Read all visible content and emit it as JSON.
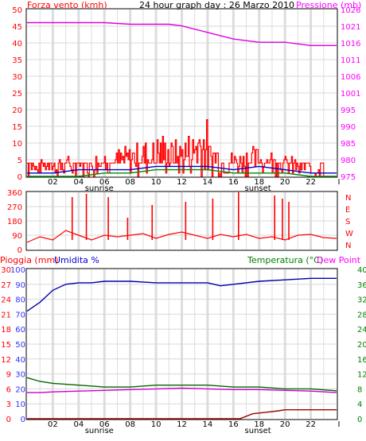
{
  "header": {
    "title": "24 hour graph day : 26 Marzo 2010",
    "left_label": "Forza vento (kmh)",
    "right_label": "Pressione (mb)"
  },
  "colors": {
    "wind": "#ff0000",
    "gust": "#cc0000",
    "wind_avg": "#0000cc",
    "wind_green": "#008800",
    "pressure": "#dd00dd",
    "direction": "#ff0000",
    "humidity": "#0000aa",
    "temperature": "#006600",
    "dewpoint": "#cc00cc",
    "rain": "#990000",
    "grid": "#d8d8d8",
    "axis_left": "#ff0000",
    "axis_right": "#ff00ff",
    "axis_blue": "#0000cc",
    "axis_green": "#008000",
    "axis_blue_labels": "#3333ff"
  },
  "hour_labels": [
    "02",
    "04",
    "06",
    "08",
    "10",
    "12",
    "14",
    "16",
    "18",
    "20",
    "22"
  ],
  "sun_labels": {
    "sunrise": "sunrise",
    "sunset": "sunset"
  },
  "chart_data": [
    {
      "type": "line",
      "name": "wind-pressure",
      "left_axis": {
        "label": "Forza vento (kmh)",
        "ticks": [
          "0",
          "5",
          "10",
          "15",
          "20",
          "25",
          "30",
          "35",
          "40",
          "45",
          "50"
        ],
        "range": [
          0,
          50
        ]
      },
      "right_axis": {
        "label": "Pressione (mb)",
        "ticks": [
          "975",
          "980",
          "985",
          "990",
          "995",
          "1001",
          "1006",
          "1011",
          "1016",
          "1021",
          "1026"
        ],
        "range": [
          975,
          1026
        ]
      },
      "x_range": [
        0,
        24
      ],
      "series": [
        {
          "key": "pressure",
          "points": [
            [
              0,
              1022
            ],
            [
              3,
              1022
            ],
            [
              6,
              1022
            ],
            [
              8,
              1021.5
            ],
            [
              11,
              1021.5
            ],
            [
              12,
              1021
            ],
            [
              13,
              1020
            ],
            [
              14,
              1019
            ],
            [
              16,
              1017
            ],
            [
              18,
              1016
            ],
            [
              20,
              1016
            ],
            [
              22,
              1015
            ],
            [
              24,
              1015
            ]
          ]
        },
        {
          "key": "wind_avg",
          "points": [
            [
              0,
              1
            ],
            [
              2,
              1
            ],
            [
              4,
              2
            ],
            [
              6,
              2
            ],
            [
              8,
              2
            ],
            [
              10,
              3
            ],
            [
              12,
              3
            ],
            [
              14,
              3
            ],
            [
              16,
              2
            ],
            [
              18,
              3
            ],
            [
              20,
              2
            ],
            [
              22,
              1
            ],
            [
              24,
              1
            ]
          ]
        },
        {
          "key": "wind_green",
          "points": [
            [
              0,
              0
            ],
            [
              4,
              0
            ],
            [
              6,
              1
            ],
            [
              8,
              1
            ],
            [
              10,
              2
            ],
            [
              12,
              2
            ],
            [
              14,
              2
            ],
            [
              16,
              1
            ],
            [
              18,
              1
            ],
            [
              20,
              1
            ],
            [
              22,
              0
            ],
            [
              24,
              0
            ]
          ]
        }
      ],
      "gusts_hourly_max": [
        4,
        5,
        5,
        6,
        5,
        7,
        8,
        9,
        10,
        11,
        13,
        11,
        13,
        18,
        11,
        8,
        8,
        9,
        8,
        7,
        6,
        3,
        3,
        0
      ]
    },
    {
      "type": "line",
      "name": "wind-direction",
      "left_axis": {
        "ticks": [
          "0",
          "90",
          "180",
          "270",
          "360"
        ],
        "range": [
          0,
          360
        ]
      },
      "right_axis": {
        "ticks": [
          "N",
          "W",
          "S",
          "E",
          "N"
        ]
      },
      "x_range": [
        0,
        24
      ],
      "series": [
        {
          "key": "direction",
          "points": [
            [
              0,
              45
            ],
            [
              1,
              80
            ],
            [
              2,
              60
            ],
            [
              3,
              120
            ],
            [
              4,
              90
            ],
            [
              5,
              60
            ],
            [
              6,
              90
            ],
            [
              7,
              80
            ],
            [
              8,
              90
            ],
            [
              9,
              100
            ],
            [
              10,
              70
            ],
            [
              11,
              95
            ],
            [
              12,
              110
            ],
            [
              13,
              90
            ],
            [
              14,
              70
            ],
            [
              15,
              95
            ],
            [
              16,
              80
            ],
            [
              17,
              95
            ],
            [
              18,
              70
            ],
            [
              19,
              80
            ],
            [
              20,
              60
            ],
            [
              21,
              90
            ],
            [
              22,
              95
            ],
            [
              23,
              75
            ],
            [
              24,
              70
            ]
          ]
        }
      ],
      "spikes": [
        [
          3.5,
          330
        ],
        [
          4.6,
          350
        ],
        [
          6.3,
          330
        ],
        [
          7.8,
          200
        ],
        [
          9.7,
          280
        ],
        [
          12.3,
          300
        ],
        [
          14.4,
          320
        ],
        [
          16.4,
          360
        ],
        [
          19.2,
          340
        ],
        [
          19.8,
          320
        ],
        [
          20.3,
          300
        ]
      ]
    },
    {
      "type": "line",
      "name": "rain-humidity-temp",
      "left_axes": [
        {
          "label": "Pioggia (mm)",
          "ticks": [
            "0",
            "3",
            "6",
            "9",
            "12",
            "15",
            "18",
            "21",
            "24",
            "27",
            "30"
          ],
          "range": [
            0,
            30
          ]
        },
        {
          "label": "Umidita %",
          "ticks": [
            "0",
            "10",
            "20",
            "30",
            "40",
            "50",
            "60",
            "70",
            "80",
            "90",
            "100"
          ],
          "range": [
            0,
            100
          ]
        }
      ],
      "right_axis": {
        "label": "Temperatura (°C)",
        "ticks": [
          "0",
          "4",
          "8",
          "12",
          "16",
          "20",
          "24",
          "28",
          "32",
          "36",
          "40"
        ],
        "range": [
          0,
          40
        ]
      },
      "extra_label": "Dew Point",
      "x_range": [
        0,
        24
      ],
      "series": [
        {
          "key": "humidity",
          "points": [
            [
              0,
              72
            ],
            [
              1,
              78
            ],
            [
              2,
              86
            ],
            [
              3,
              90
            ],
            [
              4,
              91
            ],
            [
              5,
              91
            ],
            [
              6,
              92
            ],
            [
              8,
              92
            ],
            [
              10,
              91
            ],
            [
              12,
              91
            ],
            [
              14,
              91
            ],
            [
              15,
              89
            ],
            [
              16,
              90
            ],
            [
              18,
              92
            ],
            [
              20,
              93
            ],
            [
              22,
              94
            ],
            [
              24,
              94
            ]
          ]
        },
        {
          "key": "temperature",
          "points": [
            [
              0,
              11
            ],
            [
              1,
              10
            ],
            [
              2,
              9.5
            ],
            [
              4,
              9
            ],
            [
              6,
              8.5
            ],
            [
              8,
              8.5
            ],
            [
              10,
              9
            ],
            [
              12,
              9
            ],
            [
              14,
              9
            ],
            [
              16,
              8.5
            ],
            [
              18,
              8.5
            ],
            [
              20,
              8
            ],
            [
              22,
              8
            ],
            [
              24,
              7.5
            ]
          ]
        },
        {
          "key": "dewpoint",
          "points": [
            [
              0,
              7
            ],
            [
              1,
              7
            ],
            [
              2,
              7.2
            ],
            [
              4,
              7.4
            ],
            [
              6,
              7.6
            ],
            [
              8,
              7.8
            ],
            [
              10,
              8
            ],
            [
              12,
              8.2
            ],
            [
              14,
              8
            ],
            [
              16,
              7.8
            ],
            [
              18,
              7.8
            ],
            [
              20,
              7.6
            ],
            [
              22,
              7.4
            ],
            [
              24,
              7
            ]
          ]
        },
        {
          "key": "rain",
          "points": [
            [
              0,
              0
            ],
            [
              16.5,
              0
            ],
            [
              17.5,
              1
            ],
            [
              18.5,
              1.3
            ],
            [
              19.5,
              1.6
            ],
            [
              20,
              1.8
            ],
            [
              23.5,
              1.8
            ],
            [
              24,
              1.8
            ]
          ]
        }
      ]
    }
  ]
}
